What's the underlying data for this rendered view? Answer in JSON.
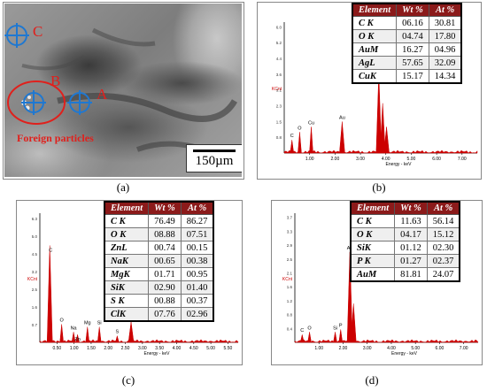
{
  "panels": {
    "a": {
      "caption": "(a)",
      "points": [
        "A",
        "B",
        "C"
      ],
      "foreign_label": "Foreign particles",
      "scale_bar": "150µm"
    },
    "b": {
      "caption": "(b)",
      "headers": [
        "Element",
        "Wt %",
        "At %"
      ],
      "rows": [
        [
          "C K",
          "06.16",
          "30.81"
        ],
        [
          "O K",
          "04.74",
          "17.80"
        ],
        [
          "AuM",
          "16.27",
          "04.96"
        ],
        [
          "AgL",
          "57.65",
          "32.09"
        ],
        [
          "CuK",
          "15.17",
          "14.34"
        ]
      ],
      "peak_labels": [
        "C",
        "O",
        "Cu",
        "Au",
        "Ag"
      ],
      "axis_ticks": [
        "1.00",
        "2.00",
        "3.00",
        "4.00",
        "5.00",
        "6.00",
        "7.00"
      ],
      "y_ticks": [
        "6.0",
        "5.2",
        "4.4",
        "3.6",
        "3.1",
        "2.3",
        "1.5",
        "0.8"
      ],
      "y_unit": "KCnt",
      "x_label": "Energy - keV"
    },
    "c": {
      "caption": "(c)",
      "headers": [
        "Element",
        "Wt %",
        "At %"
      ],
      "rows": [
        [
          "C K",
          "76.49",
          "86.27"
        ],
        [
          "O K",
          "08.88",
          "07.51"
        ],
        [
          "ZnL",
          "00.74",
          "00.15"
        ],
        [
          "NaK",
          "00.65",
          "00.38"
        ],
        [
          "MgK",
          "01.71",
          "00.95"
        ],
        [
          "SiK",
          "02.90",
          "01.40"
        ],
        [
          "S K",
          "00.88",
          "00.37"
        ],
        [
          "ClK",
          "07.76",
          "02.96"
        ]
      ],
      "peak_labels": [
        "C",
        "O",
        "Na",
        "Zn",
        "Mg",
        "Si",
        "S",
        "Cl"
      ],
      "axis_ticks": [
        "0.50",
        "1.00",
        "1.50",
        "2.00",
        "2.50",
        "3.00",
        "3.50",
        "4.00",
        "4.50",
        "5.00",
        "5.50"
      ],
      "y_ticks": [
        "6.3",
        "5.0",
        "4.5",
        "3.2",
        "2.5",
        "1.6",
        "0.7"
      ],
      "y_unit": "KCnt",
      "x_label": "Energy - keV"
    },
    "d": {
      "caption": "(d)",
      "headers": [
        "Element",
        "Wt %",
        "At %"
      ],
      "rows": [
        [
          "C K",
          "11.63",
          "56.14"
        ],
        [
          "O K",
          "04.17",
          "15.12"
        ],
        [
          "SiK",
          "01.12",
          "02.30"
        ],
        [
          "P K",
          "01.27",
          "02.37"
        ],
        [
          "AuM",
          "81.81",
          "24.07"
        ]
      ],
      "peak_labels": [
        "C",
        "O",
        "Si",
        "P",
        "Au"
      ],
      "axis_ticks": [
        "1.00",
        "2.00",
        "3.00",
        "4.00",
        "5.00",
        "6.00",
        "7.00"
      ],
      "y_ticks": [
        "3.7",
        "3.3",
        "2.9",
        "2.5",
        "2.1",
        "1.6",
        "1.2",
        "0.8",
        "0.4"
      ],
      "y_unit": "KCnt",
      "x_label": "Energy - keV"
    }
  },
  "colors": {
    "accent": "#e0201c",
    "table_header": "#8b1a1a",
    "spectrum": "#cc0000",
    "marker": "#1f78d1"
  }
}
